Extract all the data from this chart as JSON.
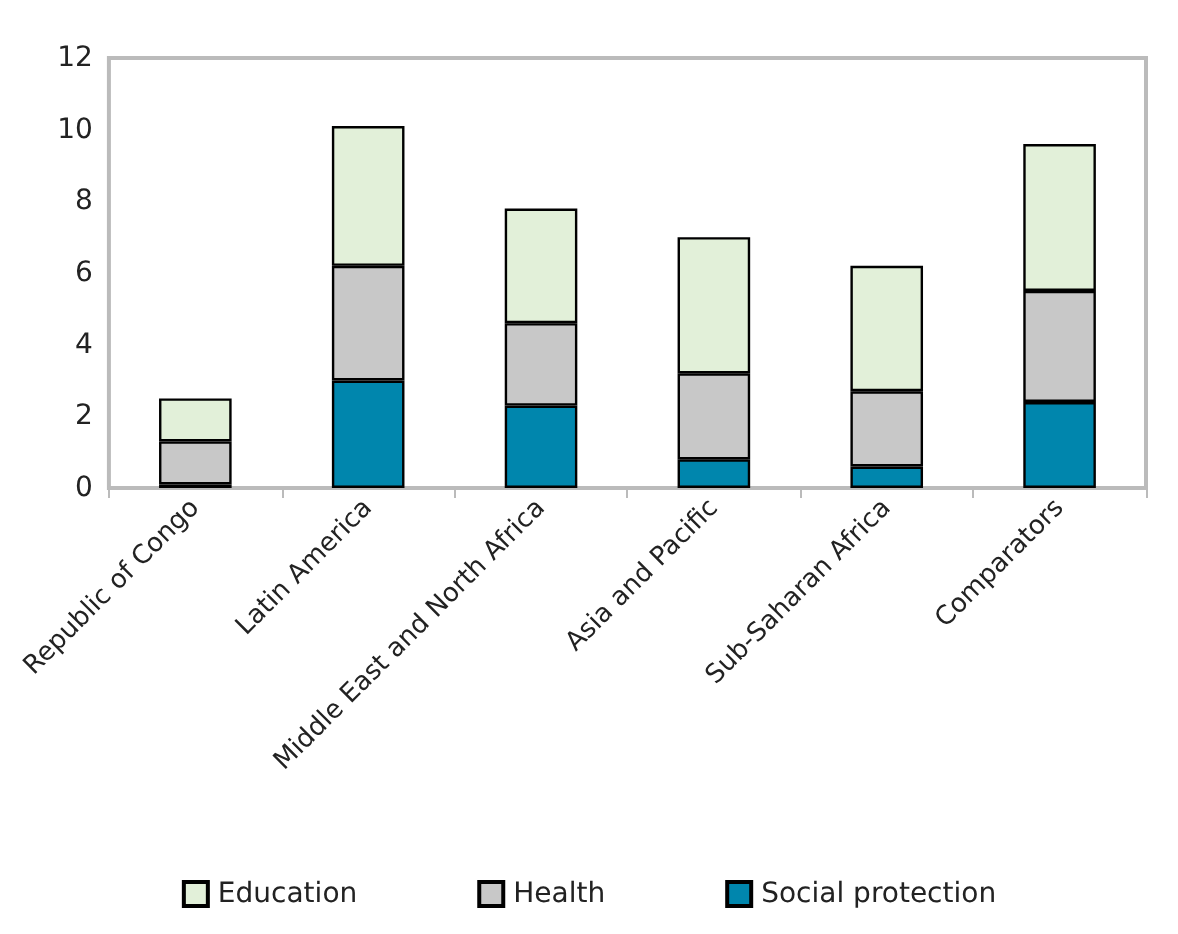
{
  "chart_data": {
    "type": "bar",
    "stacked": true,
    "categories": [
      "Republic of Congo",
      "Latin America",
      "Middle East and North Africa",
      "Asia and Pacific",
      "Sub-Saharan Africa",
      "Comparators"
    ],
    "series": [
      {
        "name": "Social protection",
        "color": "#0086ad",
        "values": [
          0.1,
          3.0,
          2.3,
          0.8,
          0.6,
          2.4
        ]
      },
      {
        "name": "Health",
        "color": "#c8c8c8",
        "values": [
          1.2,
          3.2,
          2.3,
          2.4,
          2.1,
          3.1
        ]
      },
      {
        "name": "Education",
        "color": "#e2f0d9",
        "values": [
          1.2,
          3.9,
          3.2,
          3.8,
          3.5,
          4.1
        ]
      }
    ],
    "ylim": [
      0,
      12
    ],
    "yticks": [
      0,
      2,
      4,
      6,
      8,
      10,
      12
    ],
    "grid": false,
    "legend": "bottom"
  }
}
